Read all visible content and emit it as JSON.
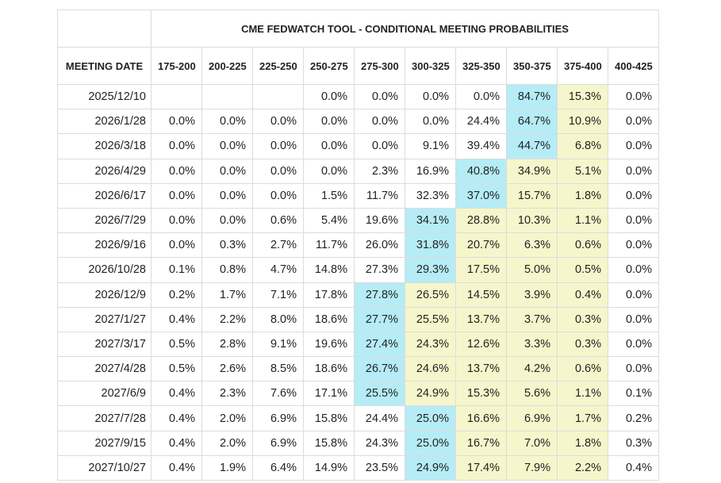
{
  "header": {
    "title": "CME FEDWATCH TOOL - CONDITIONAL MEETING PROBABILITIES"
  },
  "table": {
    "columns": [
      "MEETING DATE",
      "175-200",
      "200-225",
      "225-250",
      "250-275",
      "275-300",
      "300-325",
      "325-350",
      "350-375",
      "375-400",
      "400-425"
    ],
    "rows": [
      {
        "date": "2025/12/10",
        "cells": [
          null,
          null,
          null,
          "0.0%",
          "0.0%",
          "0.0%",
          "0.0%",
          "84.7%",
          "15.3%",
          "0.0%"
        ],
        "cyan": [
          7
        ],
        "yellow": [
          8
        ]
      },
      {
        "date": "2026/1/28",
        "cells": [
          "0.0%",
          "0.0%",
          "0.0%",
          "0.0%",
          "0.0%",
          "0.0%",
          "24.4%",
          "64.7%",
          "10.9%",
          "0.0%"
        ],
        "cyan": [
          7
        ],
        "yellow": [
          8
        ]
      },
      {
        "date": "2026/3/18",
        "cells": [
          "0.0%",
          "0.0%",
          "0.0%",
          "0.0%",
          "0.0%",
          "9.1%",
          "39.4%",
          "44.7%",
          "6.8%",
          "0.0%"
        ],
        "cyan": [
          7
        ],
        "yellow": [
          8
        ]
      },
      {
        "date": "2026/4/29",
        "cells": [
          "0.0%",
          "0.0%",
          "0.0%",
          "0.0%",
          "2.3%",
          "16.9%",
          "40.8%",
          "34.9%",
          "5.1%",
          "0.0%"
        ],
        "cyan": [
          6
        ],
        "yellow": [
          7,
          8
        ]
      },
      {
        "date": "2026/6/17",
        "cells": [
          "0.0%",
          "0.0%",
          "0.0%",
          "1.5%",
          "11.7%",
          "32.3%",
          "37.0%",
          "15.7%",
          "1.8%",
          "0.0%"
        ],
        "cyan": [
          6
        ],
        "yellow": [
          7,
          8
        ]
      },
      {
        "date": "2026/7/29",
        "cells": [
          "0.0%",
          "0.0%",
          "0.6%",
          "5.4%",
          "19.6%",
          "34.1%",
          "28.8%",
          "10.3%",
          "1.1%",
          "0.0%"
        ],
        "cyan": [
          5
        ],
        "yellow": [
          6,
          7,
          8
        ]
      },
      {
        "date": "2026/9/16",
        "cells": [
          "0.0%",
          "0.3%",
          "2.7%",
          "11.7%",
          "26.0%",
          "31.8%",
          "20.7%",
          "6.3%",
          "0.6%",
          "0.0%"
        ],
        "cyan": [
          5
        ],
        "yellow": [
          6,
          7,
          8
        ]
      },
      {
        "date": "2026/10/28",
        "cells": [
          "0.1%",
          "0.8%",
          "4.7%",
          "14.8%",
          "27.3%",
          "29.3%",
          "17.5%",
          "5.0%",
          "0.5%",
          "0.0%"
        ],
        "cyan": [
          5
        ],
        "yellow": [
          6,
          7,
          8
        ]
      },
      {
        "date": "2026/12/9",
        "cells": [
          "0.2%",
          "1.7%",
          "7.1%",
          "17.8%",
          "27.8%",
          "26.5%",
          "14.5%",
          "3.9%",
          "0.4%",
          "0.0%"
        ],
        "cyan": [
          4
        ],
        "yellow": [
          5,
          6,
          7,
          8
        ]
      },
      {
        "date": "2027/1/27",
        "cells": [
          "0.4%",
          "2.2%",
          "8.0%",
          "18.6%",
          "27.7%",
          "25.5%",
          "13.7%",
          "3.7%",
          "0.3%",
          "0.0%"
        ],
        "cyan": [
          4
        ],
        "yellow": [
          5,
          6,
          7,
          8
        ]
      },
      {
        "date": "2027/3/17",
        "cells": [
          "0.5%",
          "2.8%",
          "9.1%",
          "19.6%",
          "27.4%",
          "24.3%",
          "12.6%",
          "3.3%",
          "0.3%",
          "0.0%"
        ],
        "cyan": [
          4
        ],
        "yellow": [
          5,
          6,
          7,
          8
        ]
      },
      {
        "date": "2027/4/28",
        "cells": [
          "0.5%",
          "2.6%",
          "8.5%",
          "18.6%",
          "26.7%",
          "24.6%",
          "13.7%",
          "4.2%",
          "0.6%",
          "0.0%"
        ],
        "cyan": [
          4
        ],
        "yellow": [
          5,
          6,
          7,
          8
        ]
      },
      {
        "date": "2027/6/9",
        "cells": [
          "0.4%",
          "2.3%",
          "7.6%",
          "17.1%",
          "25.5%",
          "24.9%",
          "15.3%",
          "5.6%",
          "1.1%",
          "0.1%"
        ],
        "cyan": [
          4
        ],
        "yellow": [
          5,
          6,
          7,
          8
        ]
      },
      {
        "date": "2027/7/28",
        "cells": [
          "0.4%",
          "2.0%",
          "6.9%",
          "15.8%",
          "24.4%",
          "25.0%",
          "16.6%",
          "6.9%",
          "1.7%",
          "0.2%"
        ],
        "cyan": [
          5
        ],
        "yellow": [
          6,
          7,
          8
        ]
      },
      {
        "date": "2027/9/15",
        "cells": [
          "0.4%",
          "2.0%",
          "6.9%",
          "15.8%",
          "24.3%",
          "25.0%",
          "16.7%",
          "7.0%",
          "1.8%",
          "0.3%"
        ],
        "cyan": [
          5
        ],
        "yellow": [
          6,
          7,
          8
        ]
      },
      {
        "date": "2027/10/27",
        "cells": [
          "0.4%",
          "1.9%",
          "6.4%",
          "14.9%",
          "23.5%",
          "24.9%",
          "17.4%",
          "7.9%",
          "2.2%",
          "0.4%"
        ],
        "cyan": [
          5
        ],
        "yellow": [
          6,
          7,
          8
        ]
      }
    ]
  }
}
